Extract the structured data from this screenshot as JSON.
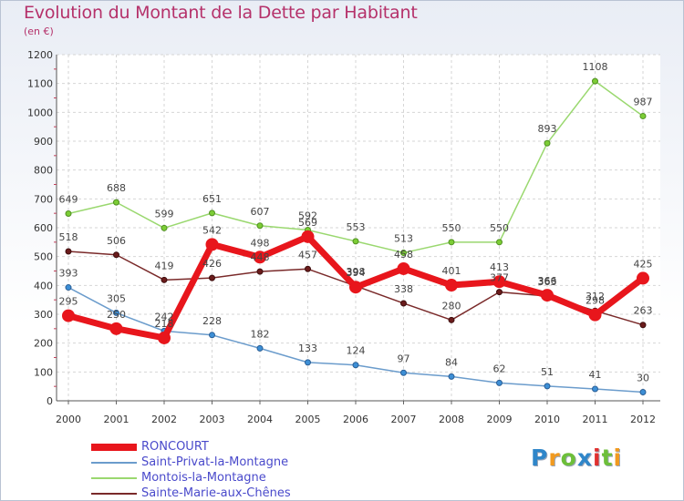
{
  "header": {
    "title": "Evolution du Montant de la Dette par Habitant",
    "subtitle": "(en €)"
  },
  "brand": {
    "letters": [
      "P",
      "r",
      "o",
      "x",
      "i",
      "t",
      "i"
    ],
    "colors": [
      "#2f86c9",
      "#f19a1f",
      "#6dbf3a",
      "#2f86c9",
      "#e0312f",
      "#6dbf3a",
      "#f19a1f"
    ]
  },
  "chart_data": {
    "type": "line",
    "title": "Evolution du Montant de la Dette par Habitant",
    "subtitle": "(en €)",
    "xlabel": "",
    "ylabel": "",
    "x": [
      "2000",
      "2001",
      "2002",
      "2003",
      "2004",
      "2005",
      "2006",
      "2007",
      "2008",
      "2009",
      "2010",
      "2011",
      "2012"
    ],
    "ylim": [
      0,
      1200
    ],
    "yticks": [
      0,
      100,
      200,
      300,
      400,
      500,
      600,
      700,
      800,
      900,
      1000,
      1100,
      1200
    ],
    "grid": true,
    "legend_position": "bottom-left",
    "series": [
      {
        "name": "RONCOURT",
        "color": "#e8161c",
        "values": [
          295,
          250,
          218,
          542,
          498,
          569,
          394,
          458,
          401,
          413,
          366,
          298,
          425
        ]
      },
      {
        "name": "Saint-Privat-la-Montagne",
        "color": "#6b9ccc",
        "values": [
          393,
          305,
          242,
          228,
          182,
          133,
          124,
          97,
          84,
          62,
          51,
          41,
          30
        ]
      },
      {
        "name": "Montois-la-Montagne",
        "color": "#9ad86f",
        "values": [
          649,
          688,
          599,
          651,
          607,
          592,
          553,
          513,
          550,
          550,
          893,
          1108,
          987
        ]
      },
      {
        "name": "Sainte-Marie-aux-Chênes",
        "color": "#7a2a2a",
        "values": [
          518,
          506,
          419,
          426,
          448,
          457,
          398,
          338,
          280,
          377,
          363,
          312,
          263
        ]
      }
    ]
  }
}
